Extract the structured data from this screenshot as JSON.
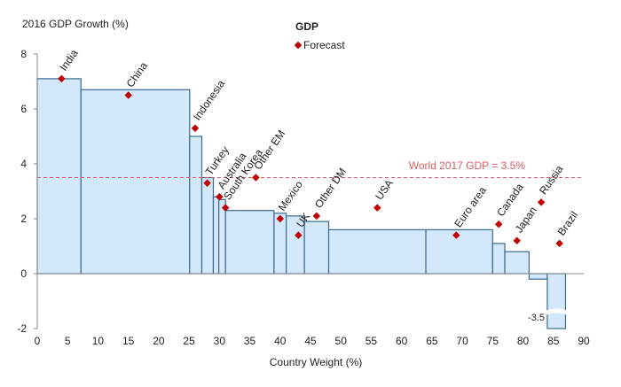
{
  "chart_data": {
    "type": "bar",
    "subtype": "variable-width",
    "title": "GDP",
    "ylabel": "2016 GDP Growth (%)",
    "xlabel": "Country Weight (%)",
    "xlim": [
      0,
      90
    ],
    "ylim": [
      -2,
      8
    ],
    "xticks": [
      "0",
      "5",
      "10",
      "15",
      "20",
      "25",
      "30",
      "35",
      "40",
      "45",
      "50",
      "55",
      "60",
      "65",
      "70",
      "75",
      "80",
      "85",
      "90"
    ],
    "yticks": [
      "8",
      "6",
      "4",
      "2",
      "0",
      "-2"
    ],
    "legend": {
      "label": "Forecast",
      "placement": "top-center"
    },
    "reference_line": {
      "label": "World 2017 GDP = 3.5%",
      "value": 3.5
    },
    "truncated_label": "-3.5",
    "colors": {
      "bar_fill": "#d3e9fb",
      "bar_stroke": "#3a6a92",
      "forecast": "#c00000",
      "reference": "#e05a64"
    },
    "series": [
      {
        "name": "India",
        "x0": 0,
        "x1": 7.2,
        "growth_2016": 7.1,
        "forecast_2017": 7.1,
        "marker_x": 4
      },
      {
        "name": "China",
        "x0": 7.2,
        "x1": 25.1,
        "growth_2016": 6.7,
        "forecast_2017": 6.5,
        "marker_x": 15
      },
      {
        "name": "Indonesia",
        "x0": 25.1,
        "x1": 27.1,
        "growth_2016": 5.0,
        "forecast_2017": 5.3,
        "marker_x": 26
      },
      {
        "name": "Turkey",
        "x0": 27.1,
        "x1": 29.0,
        "growth_2016": 3.5,
        "forecast_2017": 3.3,
        "marker_x": 28
      },
      {
        "name": "Australia",
        "x0": 29.0,
        "x1": 29.9,
        "growth_2016": 2.8,
        "forecast_2017": 2.8,
        "marker_x": 30
      },
      {
        "name": "South Korea",
        "x0": 29.9,
        "x1": 31.0,
        "growth_2016": 2.7,
        "forecast_2017": 2.4,
        "marker_x": 31
      },
      {
        "name": "Other EM",
        "x0": 31.0,
        "x1": 39.0,
        "growth_2016": 2.3,
        "forecast_2017": 3.5,
        "marker_x": 36
      },
      {
        "name": "Mexico",
        "x0": 39.0,
        "x1": 41.0,
        "growth_2016": 2.2,
        "forecast_2017": 2.0,
        "marker_x": 40
      },
      {
        "name": "UK",
        "x0": 41.0,
        "x1": 44.0,
        "growth_2016": 2.1,
        "forecast_2017": 1.4,
        "marker_x": 43
      },
      {
        "name": "Other DM",
        "x0": 44.0,
        "x1": 48.0,
        "growth_2016": 1.9,
        "forecast_2017": 2.1,
        "marker_x": 46
      },
      {
        "name": "USA",
        "x0": 48.0,
        "x1": 64.0,
        "growth_2016": 1.6,
        "forecast_2017": 2.4,
        "marker_x": 56
      },
      {
        "name": "Euro area",
        "x0": 64.0,
        "x1": 75.0,
        "growth_2016": 1.6,
        "forecast_2017": 1.4,
        "marker_x": 69
      },
      {
        "name": "Canada",
        "x0": 75.0,
        "x1": 77.0,
        "growth_2016": 1.1,
        "forecast_2017": 1.8,
        "marker_x": 76
      },
      {
        "name": "Japan",
        "x0": 77.0,
        "x1": 81.0,
        "growth_2016": 0.8,
        "forecast_2017": 1.2,
        "marker_x": 79
      },
      {
        "name": "Russia",
        "x0": 81.0,
        "x1": 84.0,
        "growth_2016": -0.2,
        "forecast_2017": 2.6,
        "marker_x": 83
      },
      {
        "name": "Brazil",
        "x0": 84.0,
        "x1": 87.0,
        "growth_2016": -3.5,
        "forecast_2017": 1.1,
        "marker_x": 86
      }
    ]
  }
}
